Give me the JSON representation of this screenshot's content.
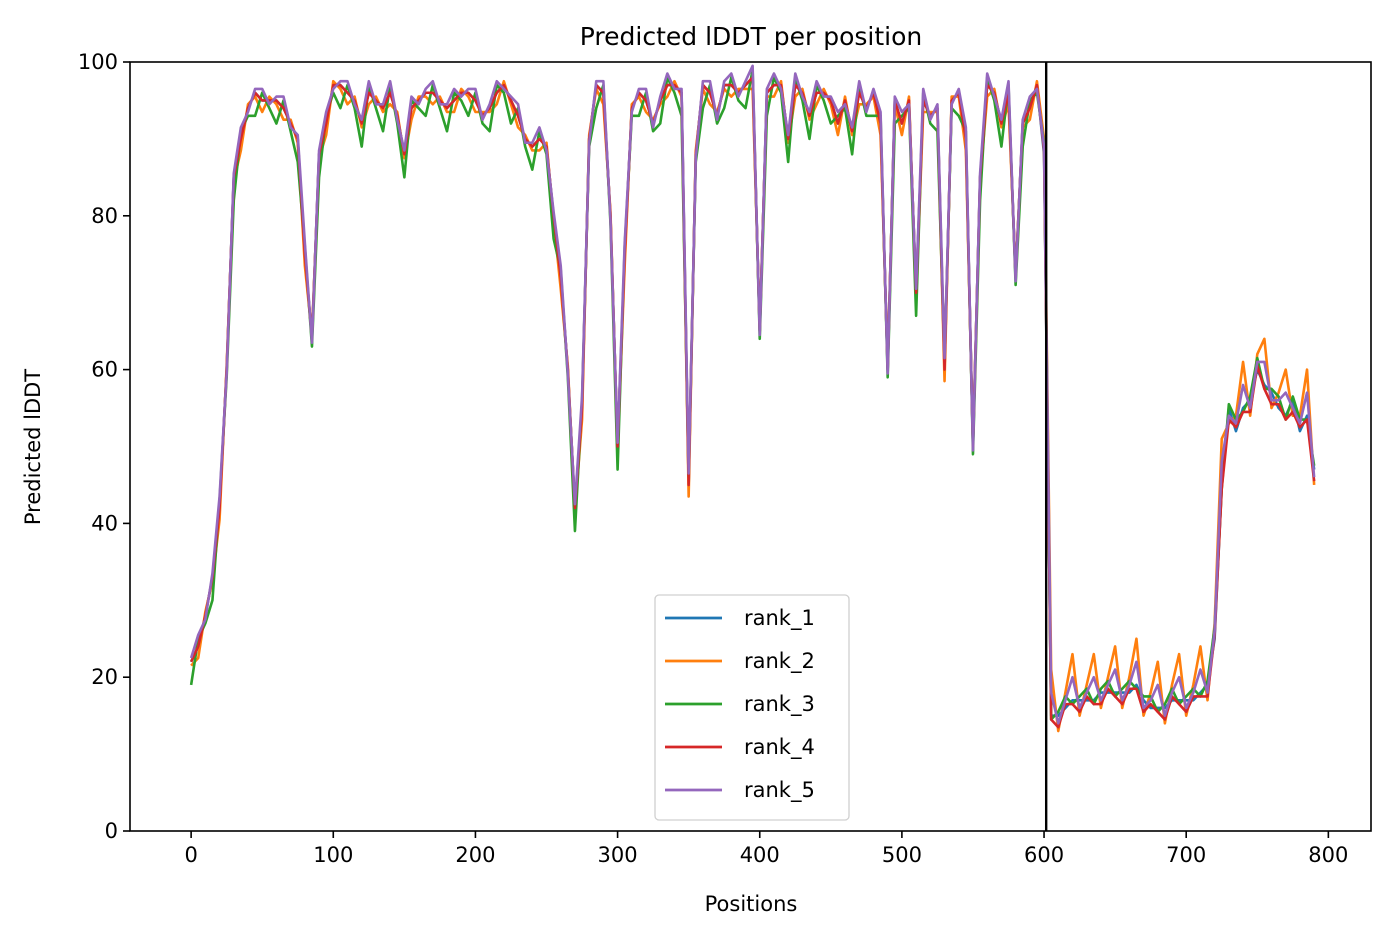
{
  "chart_data": {
    "type": "line",
    "title": "Predicted lDDT per position",
    "xlabel": "Positions",
    "ylabel": "Predicted lDDT",
    "xlim": [
      -43,
      830
    ],
    "ylim": [
      0,
      100
    ],
    "xticks": [
      0,
      100,
      200,
      300,
      400,
      500,
      600,
      700,
      800
    ],
    "yticks": [
      0,
      20,
      40,
      60,
      80,
      100
    ],
    "grid": false,
    "legend_position": "lower center",
    "vlines": [
      {
        "x": 601.5,
        "color": "#000000"
      }
    ],
    "base": {
      "x": [
        0,
        5,
        10,
        15,
        20,
        25,
        30,
        35,
        40,
        45,
        50,
        55,
        60,
        65,
        70,
        75,
        80,
        85,
        90,
        95,
        100,
        105,
        110,
        115,
        120,
        125,
        130,
        135,
        140,
        145,
        150,
        155,
        160,
        165,
        170,
        175,
        180,
        185,
        190,
        195,
        200,
        205,
        210,
        215,
        220,
        225,
        230,
        235,
        240,
        245,
        250,
        255,
        260,
        265,
        270,
        275,
        280,
        285,
        290,
        295,
        300,
        305,
        310,
        315,
        320,
        325,
        330,
        335,
        340,
        345,
        350,
        355,
        360,
        365,
        370,
        375,
        380,
        385,
        390,
        395,
        400,
        405,
        410,
        415,
        420,
        425,
        430,
        435,
        440,
        445,
        450,
        455,
        460,
        465,
        470,
        475,
        480,
        485,
        490,
        495,
        500,
        505,
        510,
        515,
        520,
        525,
        530,
        535,
        540,
        545,
        550,
        555,
        560,
        565,
        570,
        575,
        580,
        585,
        590,
        595,
        600,
        605,
        610,
        615,
        620,
        625,
        630,
        635,
        640,
        645,
        650,
        655,
        660,
        665,
        670,
        675,
        680,
        685,
        690,
        695,
        700,
        705,
        710,
        715,
        720,
        725,
        730,
        735,
        740,
        745,
        750,
        755,
        760,
        765,
        770,
        775,
        780,
        785,
        790
      ],
      "y": [
        22,
        24,
        28,
        33,
        42,
        60,
        85,
        90,
        94,
        96,
        95,
        95,
        95,
        94,
        92,
        90,
        75,
        64,
        88,
        92,
        97,
        97,
        96,
        95,
        92,
        96,
        95,
        94,
        96,
        93,
        88,
        94,
        95,
        96,
        96,
        95,
        94,
        95,
        96,
        96,
        95,
        93,
        94,
        96,
        97,
        95,
        93,
        90,
        89,
        90,
        89,
        80,
        72,
        60,
        42,
        55,
        90,
        97,
        96,
        80,
        50,
        75,
        94,
        96,
        95,
        92,
        95,
        97,
        97,
        96,
        45,
        88,
        97,
        96,
        93,
        97,
        97,
        96,
        97,
        98,
        65,
        96,
        97,
        97,
        90,
        97,
        96,
        93,
        96,
        96,
        95,
        92,
        95,
        91,
        96,
        94,
        96,
        92,
        60,
        95,
        92,
        95,
        70,
        95,
        93,
        94,
        60,
        95,
        96,
        90,
        50,
        85,
        97,
        96,
        92,
        96,
        72,
        92,
        94,
        97,
        88,
        15,
        15,
        16,
        17,
        17,
        17,
        17,
        18,
        18,
        18,
        18,
        18,
        19,
        17,
        16,
        16,
        16,
        17,
        17,
        17,
        17,
        18,
        19,
        25,
        45,
        55,
        52,
        55,
        56,
        60,
        58,
        57,
        55,
        54,
        56,
        52,
        54,
        47
      ]
    },
    "series": [
      {
        "name": "rank_1",
        "color": "#1f77b4",
        "offsets": [
          0,
          0
        ]
      },
      {
        "name": "rank_2",
        "color": "#ff7f0e",
        "offsets": [
          -1,
          4
        ]
      },
      {
        "name": "rank_3",
        "color": "#2ca02c",
        "offsets": [
          -2,
          1
        ]
      },
      {
        "name": "rank_4",
        "color": "#d62728",
        "offsets": [
          0,
          -1
        ]
      },
      {
        "name": "rank_5",
        "color": "#9467bd",
        "offsets": [
          1,
          2
        ]
      }
    ]
  }
}
